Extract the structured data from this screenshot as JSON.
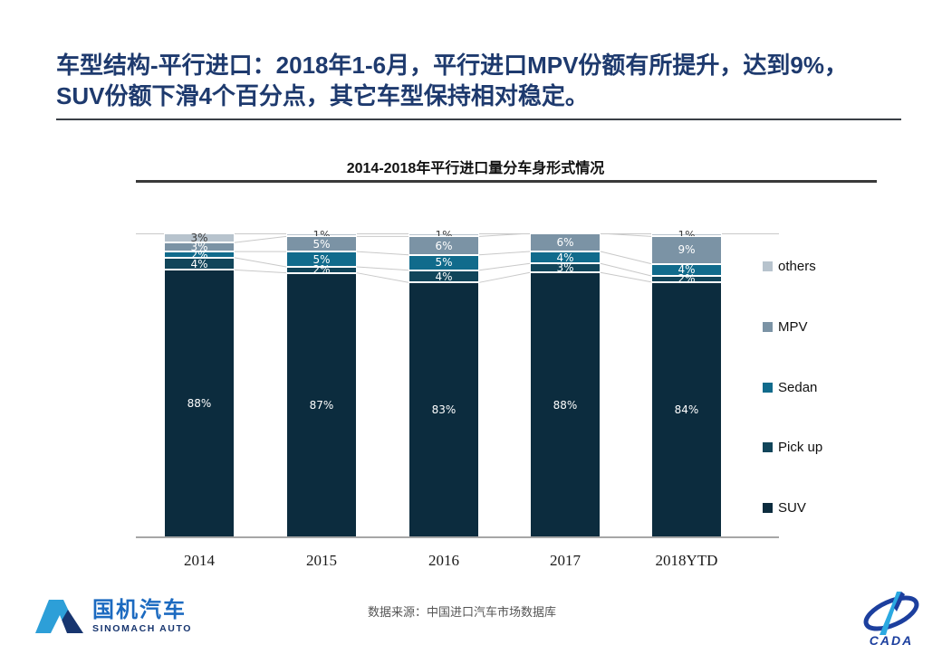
{
  "slide": {
    "title_line1": "车型结构-平行进口：2018年1-6月，平行进口MPV份额有所提升，达到9%，",
    "title_line2": "SUV份额下滑4个百分点，其它车型保持相对稳定。",
    "title_color": "#1E3A6E",
    "source_note": "数据来源：中国进口汽车市场数据库"
  },
  "logos": {
    "sinomach_cn": "国机汽车",
    "sinomach_en": "SINOMACH AUTO",
    "cada_text": "CADA"
  },
  "chart_data": {
    "type": "bar",
    "stacked": true,
    "percent_stacked": true,
    "title": "2014-2018年平行进口量分车身形式情况",
    "categories": [
      "2014",
      "2015",
      "2016",
      "2017",
      "2018YTD"
    ],
    "series": [
      {
        "name": "SUV",
        "color": "#0C2C3E",
        "label_color": "#ffffff",
        "values": [
          88,
          87,
          83,
          88,
          84
        ]
      },
      {
        "name": "Pick up",
        "color": "#11455A",
        "label_color": "#ffffff",
        "values": [
          4,
          2,
          4,
          3,
          2
        ]
      },
      {
        "name": "Sedan",
        "color": "#116B8C",
        "label_color": "#ffffff",
        "values": [
          2,
          5,
          5,
          4,
          4
        ]
      },
      {
        "name": "MPV",
        "color": "#7B93A5",
        "label_color": "#ffffff",
        "values": [
          3,
          5,
          6,
          6,
          9
        ]
      },
      {
        "name": "others",
        "color": "#B7C3CD",
        "label_color": "#404040",
        "values": [
          3,
          1,
          1,
          0,
          1
        ]
      }
    ],
    "stack_order_top_to_bottom": [
      "others",
      "MPV",
      "Sedan",
      "Pick up",
      "SUV"
    ],
    "value_suffix": "%",
    "ylim": [
      0,
      100
    ],
    "grid": false,
    "legend_position": "right",
    "connector_color": "#c9c9c9"
  }
}
